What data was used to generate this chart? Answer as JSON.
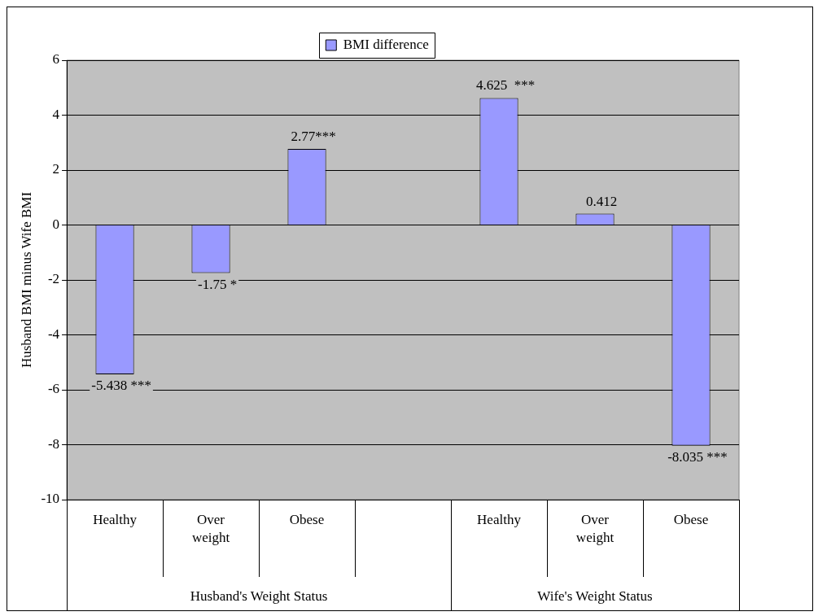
{
  "chart_data": {
    "type": "bar",
    "categories": [
      "Healthy",
      "Over weight",
      "Obese",
      null,
      "Healthy",
      "Over weight",
      "Obese"
    ],
    "series": [
      {
        "name": "BMI difference",
        "color": "#9999ff",
        "values": [
          -5.438,
          -1.75,
          2.77,
          null,
          4.625,
          0.412,
          -8.035
        ],
        "value_labels": [
          "-5.438 ***",
          "-1.75 *",
          "2.77***",
          null,
          "4.625  ***",
          "0.412",
          "-8.035 ***"
        ]
      }
    ],
    "ylabel": "Husband BMI minus Wife BMI",
    "ylim": [
      -10,
      6
    ],
    "yticks": [
      -10,
      -8,
      -6,
      -4,
      -2,
      0,
      2,
      4,
      6
    ],
    "grid": "y",
    "legend": "top",
    "annotations": [
      "Husband's Weight Status",
      "Wife's Weight Status"
    ]
  }
}
